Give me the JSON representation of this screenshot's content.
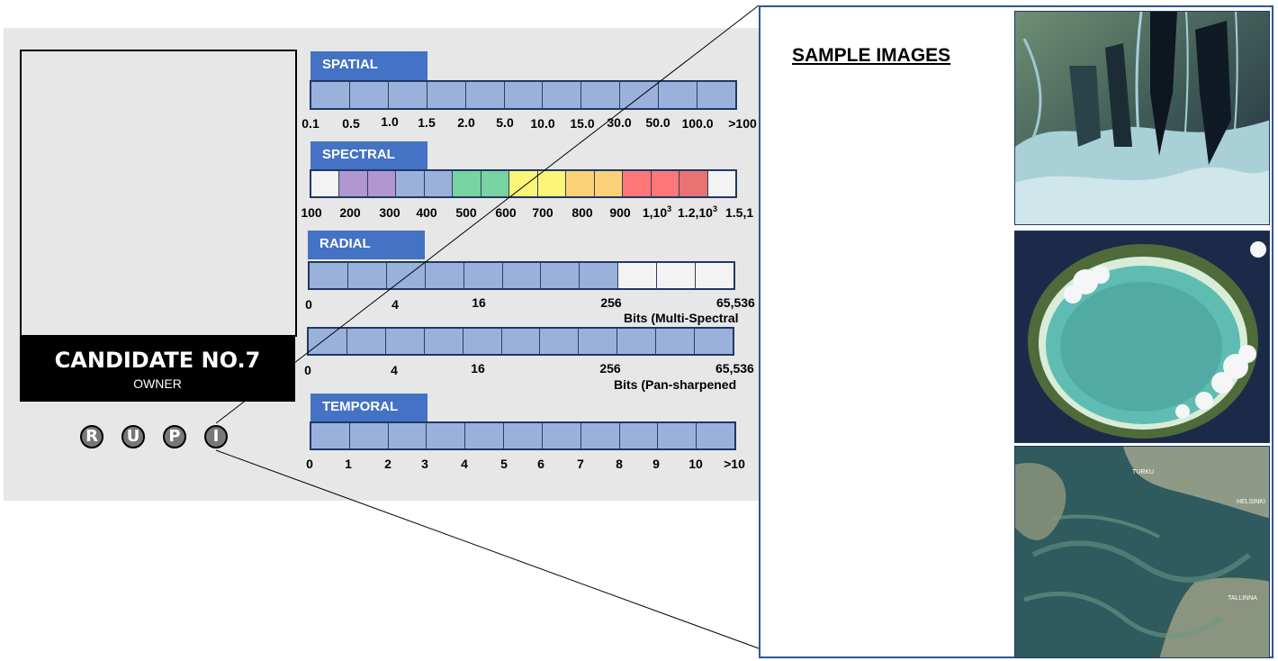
{
  "candidate": {
    "name": "CANDIDATE NO.7",
    "role": "OWNER"
  },
  "rupi": [
    "R",
    "U",
    "P",
    "I"
  ],
  "spatial": {
    "title": "SPATIAL",
    "ticks": [
      "0.1",
      "0.5",
      "1.0",
      "1.5",
      "2.0",
      "5.0",
      "10.0",
      "15.0",
      "30.0",
      "50.0",
      "100.0",
      ">100"
    ]
  },
  "spectral": {
    "title": "SPECTRAL",
    "ticks": [
      "100",
      "200",
      "300",
      "400",
      "500",
      "600",
      "700",
      "800",
      "900"
    ],
    "tick_sup_1": {
      "base": "1,10",
      "exp": "3"
    },
    "tick_sup_2": {
      "base": "1.2,10",
      "exp": "3"
    },
    "tick_last": "1.5,1",
    "colors": [
      "#f3f3f3",
      "#b196cf",
      "#b196cf",
      "#9ab1dc",
      "#9ab1dc",
      "#77d39f",
      "#77d39f",
      "#fbf57a",
      "#fbf57a",
      "#fbd277",
      "#fbd277",
      "#ff7676",
      "#ff7676",
      "#e97272",
      "#f3f3f3"
    ]
  },
  "radial": {
    "title": "RADIAL",
    "ticks": [
      "0",
      "4",
      "16",
      "256",
      "65,536"
    ],
    "ms_label": "Bits (Multi-Spectral",
    "pan_label": "Bits (Pan-sharpened"
  },
  "temporal": {
    "title": "TEMPORAL",
    "ticks": [
      "0",
      "1",
      "2",
      "3",
      "4",
      "5",
      "6",
      "7",
      "8",
      "9",
      "10",
      ">10"
    ]
  },
  "samples": {
    "title": "SAMPLE IMAGES",
    "labels": [
      "TURKU",
      "HELSINKI",
      "TALLINNA"
    ]
  },
  "colors": {
    "accent": "#4472c4",
    "bar_fill": "#9ab1dc",
    "bar_empty": "#f3f3f3"
  }
}
